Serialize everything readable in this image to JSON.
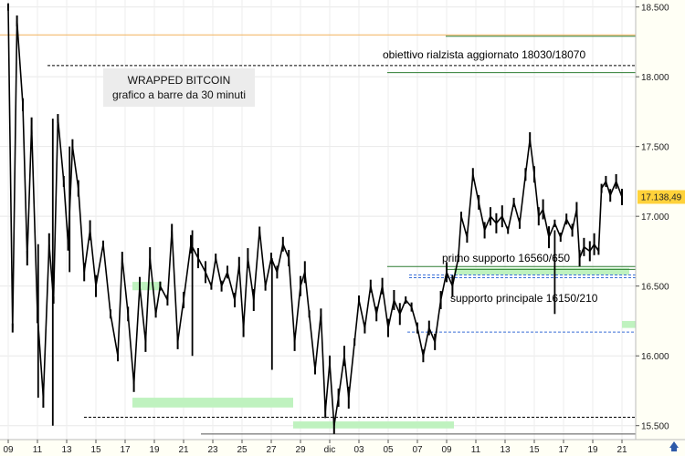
{
  "chart_data": {
    "type": "bar",
    "title": "WRAPPED BITCOIN",
    "subtitle": "grafico a barre da 30 minuti",
    "ylim": [
      15400,
      18550
    ],
    "y_ticks": [
      15500,
      16000,
      16500,
      17000,
      17500,
      18000,
      18500
    ],
    "y_tick_labels": [
      "15.500",
      "16.000",
      "16.500",
      "17.000",
      "17.500",
      "18.000",
      "18.500"
    ],
    "x_tick_labels": [
      "09",
      "11",
      "13",
      "15",
      "17",
      "19",
      "21",
      "23",
      "25",
      "27",
      "29",
      "dic",
      "03",
      "05",
      "07",
      "09",
      "11",
      "13",
      "15",
      "17",
      "19",
      "21"
    ],
    "last_price": 17138.49,
    "last_price_label": "17.138,49",
    "grid": true,
    "price_path": [
      [
        0,
        18500
      ],
      [
        0.3,
        16200
      ],
      [
        0.6,
        18400
      ],
      [
        1,
        17800
      ],
      [
        1.3,
        16700
      ],
      [
        1.6,
        17650
      ],
      [
        2,
        16300
      ],
      [
        2.4,
        15700
      ],
      [
        2.8,
        16800
      ],
      [
        3.1,
        16400
      ],
      [
        3.4,
        17700
      ],
      [
        3.8,
        17250
      ],
      [
        4.1,
        16800
      ],
      [
        4.4,
        17500
      ],
      [
        4.8,
        17200
      ],
      [
        5.2,
        16600
      ],
      [
        5.6,
        16900
      ],
      [
        6,
        16500
      ],
      [
        6.5,
        16800
      ],
      [
        7,
        16300
      ],
      [
        7.5,
        16000
      ],
      [
        7.8,
        16700
      ],
      [
        8.2,
        16300
      ],
      [
        8.6,
        15800
      ],
      [
        9,
        16500
      ],
      [
        9.4,
        16100
      ],
      [
        9.7,
        16700
      ],
      [
        10.1,
        16300
      ],
      [
        10.4,
        16500
      ],
      [
        10.9,
        16400
      ],
      [
        11.2,
        16900
      ],
      [
        11.6,
        16100
      ],
      [
        12,
        16400
      ],
      [
        12.5,
        16800
      ],
      [
        13,
        16700
      ],
      [
        13.5,
        16600
      ],
      [
        13.9,
        16500
      ],
      [
        14.2,
        16700
      ],
      [
        14.6,
        16500
      ],
      [
        15,
        16600
      ],
      [
        15.5,
        16400
      ],
      [
        15.8,
        16650
      ],
      [
        16.1,
        16200
      ],
      [
        16.4,
        16700
      ],
      [
        16.8,
        16400
      ],
      [
        17.2,
        16900
      ],
      [
        17.6,
        16500
      ],
      [
        18,
        16700
      ],
      [
        18.4,
        16600
      ],
      [
        18.8,
        16800
      ],
      [
        19.2,
        16700
      ],
      [
        19.6,
        16100
      ],
      [
        20,
        16500
      ],
      [
        20.3,
        16600
      ],
      [
        20.6,
        16300
      ],
      [
        21,
        15900
      ],
      [
        21.4,
        16300
      ],
      [
        21.7,
        15600
      ],
      [
        22,
        15950
      ],
      [
        22.3,
        15500
      ],
      [
        22.6,
        15700
      ],
      [
        23,
        16000
      ],
      [
        23.3,
        15700
      ],
      [
        23.7,
        16100
      ],
      [
        24,
        16400
      ],
      [
        24.4,
        16200
      ],
      [
        24.8,
        16500
      ],
      [
        25.2,
        16300
      ],
      [
        25.6,
        16500
      ],
      [
        26,
        16200
      ],
      [
        26.4,
        16400
      ],
      [
        26.8,
        16300
      ],
      [
        27.2,
        16400
      ],
      [
        27.6,
        16350
      ],
      [
        28,
        16200
      ],
      [
        28.4,
        16000
      ],
      [
        28.8,
        16200
      ],
      [
        29.2,
        16100
      ],
      [
        29.6,
        16400
      ],
      [
        30,
        16600
      ],
      [
        30.4,
        16500
      ],
      [
        30.8,
        16700
      ],
      [
        31,
        17000
      ],
      [
        31.4,
        16850
      ],
      [
        31.8,
        17300
      ],
      [
        32.2,
        17100
      ],
      [
        32.6,
        16900
      ],
      [
        33,
        17000
      ],
      [
        33.4,
        16950
      ],
      [
        33.8,
        17000
      ],
      [
        34.2,
        16900
      ],
      [
        34.6,
        17100
      ],
      [
        35,
        16950
      ],
      [
        35.4,
        17300
      ],
      [
        35.7,
        17550
      ],
      [
        36,
        17300
      ],
      [
        36.3,
        17000
      ],
      [
        36.6,
        17050
      ],
      [
        37,
        16850
      ],
      [
        37.4,
        16950
      ],
      [
        37.8,
        16850
      ],
      [
        38.2,
        16980
      ],
      [
        38.6,
        16900
      ],
      [
        38.9,
        17050
      ],
      [
        39.1,
        16700
      ],
      [
        39.4,
        16780
      ],
      [
        39.8,
        16750
      ],
      [
        40.1,
        16800
      ],
      [
        40.4,
        16750
      ],
      [
        40.6,
        17200
      ],
      [
        40.9,
        17250
      ],
      [
        41.2,
        17150
      ],
      [
        41.6,
        17250
      ],
      [
        42,
        17138.49
      ]
    ],
    "spikes": [
      [
        2.05,
        16800,
        15700
      ],
      [
        3.05,
        17700,
        15500
      ],
      [
        4.2,
        17500,
        16600
      ],
      [
        12.6,
        16000,
        16900
      ],
      [
        18.05,
        15900,
        16700
      ],
      [
        37.4,
        16300,
        16900
      ]
    ],
    "horizontal_levels": [
      {
        "value": 18300,
        "style": "solid",
        "color": "#f2b15a"
      },
      {
        "value": 18290,
        "style": "solid",
        "color": "#2e7d32"
      },
      {
        "value": 18080,
        "style": "dashed",
        "color": "#000000"
      },
      {
        "value": 18030,
        "style": "solid",
        "color": "#2e7d32"
      },
      {
        "value": 16640,
        "style": "solid",
        "color": "#2e7d32"
      },
      {
        "value": 16620,
        "style": "solid",
        "color": "#2e7d32"
      },
      {
        "value": 16580,
        "style": "dashed",
        "color": "#3a6fd8"
      },
      {
        "value": 16560,
        "style": "dashed",
        "color": "#3a6fd8"
      },
      {
        "value": 16170,
        "style": "dashed",
        "color": "#3a6fd8"
      },
      {
        "value": 15560,
        "style": "dashed",
        "color": "#000000"
      },
      {
        "value": 15440,
        "style": "solid",
        "color": "#555555"
      }
    ],
    "zones": [
      {
        "x0": 8.5,
        "x1": 10.5,
        "y0": 16470,
        "y1": 16530
      },
      {
        "x0": 8.5,
        "x1": 19.5,
        "y0": 15630,
        "y1": 15700
      },
      {
        "x0": 19.5,
        "x1": 30.5,
        "y0": 15480,
        "y1": 15530
      },
      {
        "x0": 30.5,
        "x1": 42.5,
        "y0": 16580,
        "y1": 16630
      },
      {
        "x0": 42,
        "x1": 45.5,
        "y0": 16200,
        "y1": 16250
      }
    ],
    "annotations": [
      {
        "text": "obiettivo rialzista aggiornato  18030/18070"
      },
      {
        "text": "primo supporto 16560/650"
      },
      {
        "text": "supporto principale 16150/210"
      }
    ]
  }
}
